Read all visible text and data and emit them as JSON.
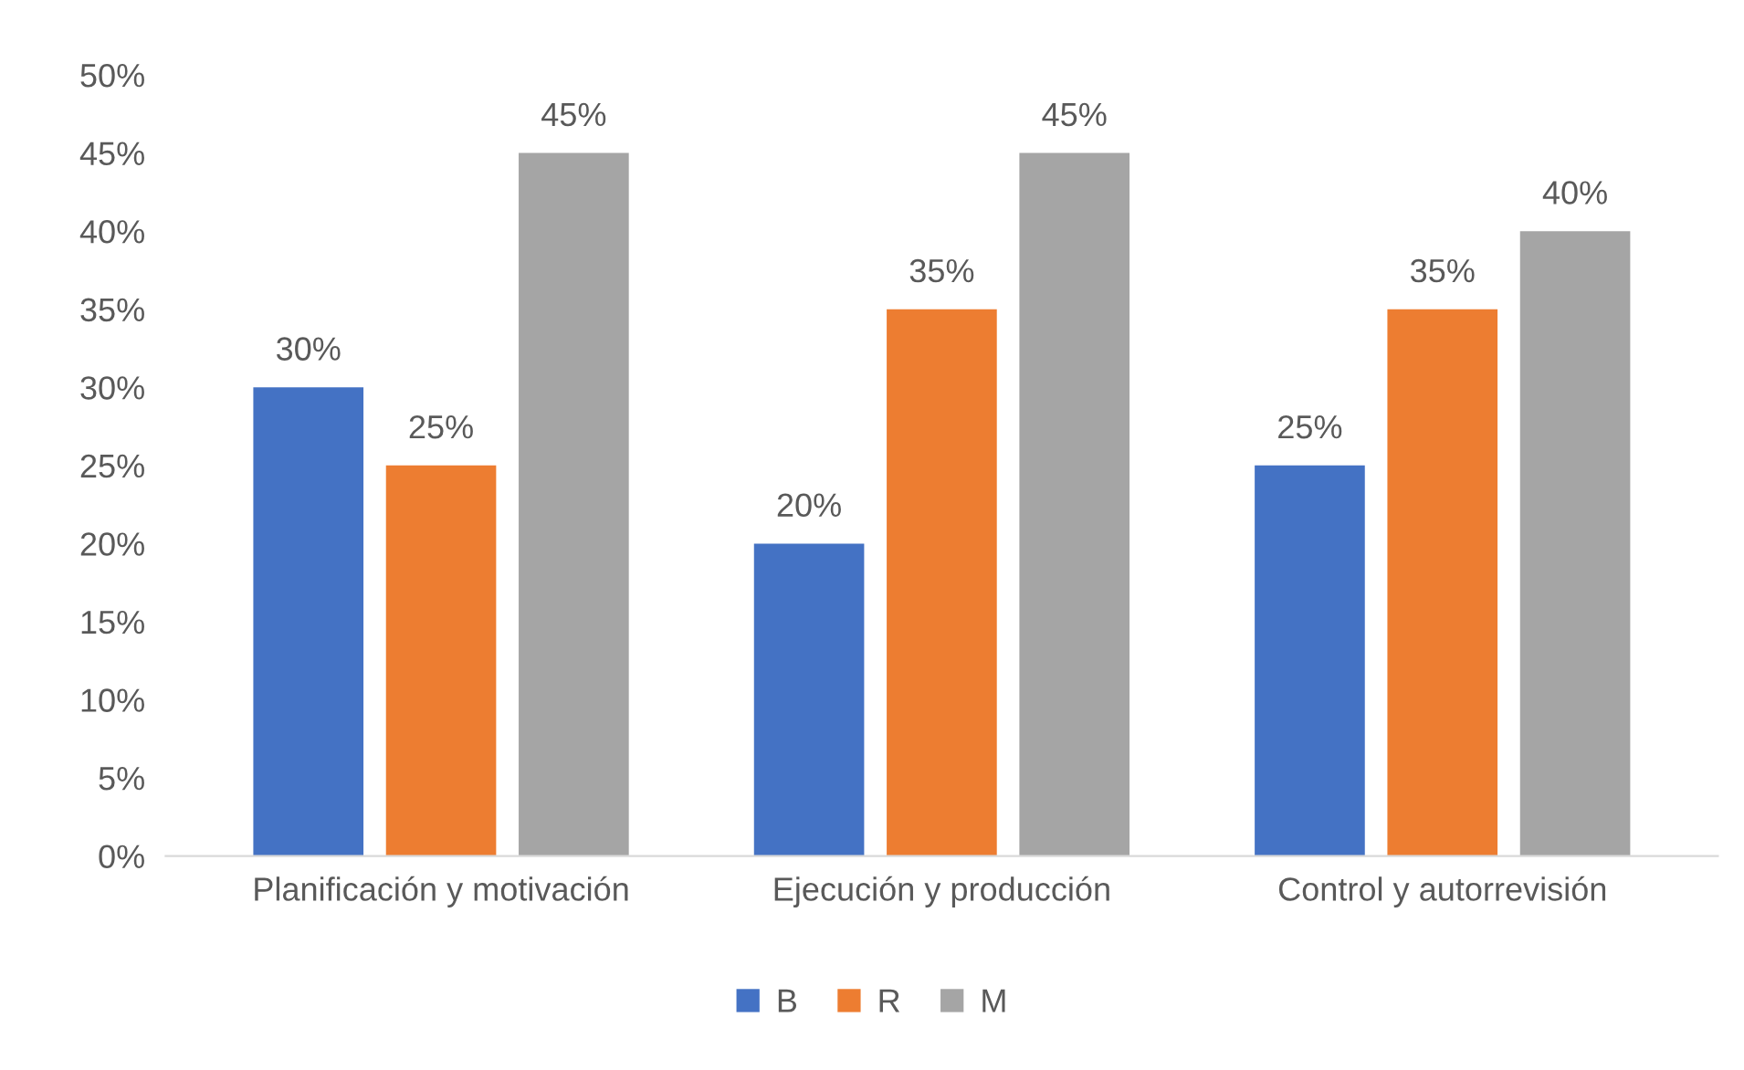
{
  "chart_data": {
    "type": "bar",
    "categories": [
      "Planificación y motivación",
      "Ejecución y producción",
      "Control y autorrevisión"
    ],
    "series": [
      {
        "name": "B",
        "color": "#4472c4",
        "values": [
          30,
          20,
          25
        ],
        "value_labels": [
          "30%",
          "20%",
          "25%"
        ]
      },
      {
        "name": "R",
        "color": "#ed7d31",
        "values": [
          25,
          35,
          35
        ],
        "value_labels": [
          "25%",
          "35%",
          "35%"
        ]
      },
      {
        "name": "M",
        "color": "#a5a5a5",
        "values": [
          45,
          45,
          40
        ],
        "value_labels": [
          "45%",
          "45%",
          "40%"
        ]
      }
    ],
    "ylim": [
      0,
      50
    ],
    "yticks": [
      {
        "value": 0,
        "label": "0%"
      },
      {
        "value": 5,
        "label": "5%"
      },
      {
        "value": 10,
        "label": "10%"
      },
      {
        "value": 15,
        "label": "15%"
      },
      {
        "value": 20,
        "label": "20%"
      },
      {
        "value": 25,
        "label": "25%"
      },
      {
        "value": 30,
        "label": "30%"
      },
      {
        "value": 35,
        "label": "35%"
      },
      {
        "value": 40,
        "label": "40%"
      },
      {
        "value": 45,
        "label": "45%"
      },
      {
        "value": 50,
        "label": "50%"
      }
    ],
    "grid": false,
    "legend": "bottom"
  }
}
